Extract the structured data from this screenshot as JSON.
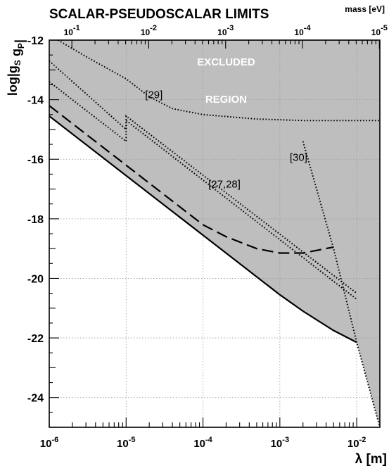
{
  "chart_data": {
    "type": "line",
    "title": "SCALAR-PSEUDOSCALAR LIMITS",
    "xlabel": "λ  [m]",
    "ylabel": "log|g_S g_P|",
    "top_axis_label": "mass [eV]",
    "x_scale": "log",
    "xlim": [
      1e-06,
      0.02
    ],
    "ylim": [
      -25,
      -12
    ],
    "grid": true,
    "x_tick_labels": [
      {
        "value": 1e-06,
        "base": "10",
        "exp": "-6"
      },
      {
        "value": 1e-05,
        "base": "10",
        "exp": "-5"
      },
      {
        "value": 0.0001,
        "base": "10",
        "exp": "-4"
      },
      {
        "value": 0.001,
        "base": "10",
        "exp": "-3"
      },
      {
        "value": 0.01,
        "base": "10",
        "exp": "-2"
      }
    ],
    "y_tick_labels": [
      "-12",
      "-14",
      "-16",
      "-18",
      "-20",
      "-22",
      "-24"
    ],
    "y_tick_values": [
      -12,
      -14,
      -16,
      -18,
      -20,
      -22,
      -24
    ],
    "top_tick_labels": [
      {
        "lambda": 1.97e-06,
        "base": "10",
        "exp": "-1"
      },
      {
        "lambda": 1.97e-05,
        "base": "10",
        "exp": "-2"
      },
      {
        "lambda": 0.000197,
        "base": "10",
        "exp": "-3"
      },
      {
        "lambda": 0.00197,
        "base": "10",
        "exp": "-4"
      },
      {
        "lambda": 0.0197,
        "base": "10",
        "exp": "-5"
      }
    ],
    "annotations": [
      {
        "text": "EXCLUDED",
        "x": 0.0002,
        "y": -12.85,
        "style": "region"
      },
      {
        "text": "REGION",
        "x": 0.0002,
        "y": -14.1,
        "style": "region"
      },
      {
        "text": "[29]",
        "x": 2.3e-05,
        "y": -13.95,
        "style": "ref"
      },
      {
        "text": "[27,28]",
        "x": 0.00019,
        "y": -16.95,
        "style": "ref"
      },
      {
        "text": "[30]",
        "x": 0.00175,
        "y": -16.05,
        "style": "ref"
      }
    ],
    "series": [
      {
        "style": "solid",
        "points": [
          [
            1e-06,
            -14.55
          ],
          [
            1e-05,
            -16.55
          ],
          [
            0.0001,
            -18.55
          ],
          [
            0.001,
            -20.55
          ],
          [
            0.002,
            -21.1
          ],
          [
            0.005,
            -21.75
          ],
          [
            0.01,
            -22.15
          ]
        ]
      },
      {
        "style": "dashed",
        "points": [
          [
            1e-06,
            -14.2
          ],
          [
            1e-05,
            -16.2
          ],
          [
            5e-05,
            -17.6
          ],
          [
            0.0001,
            -18.2
          ],
          [
            0.0002,
            -18.6
          ],
          [
            0.0005,
            -19.0
          ],
          [
            0.001,
            -19.15
          ],
          [
            0.002,
            -19.15
          ],
          [
            0.005,
            -18.95
          ]
        ]
      },
      {
        "style": "dotted",
        "points": [
          [
            1.3e-06,
            -12.0
          ],
          [
            3e-06,
            -12.55
          ],
          [
            1e-05,
            -13.3
          ],
          [
            2e-05,
            -13.9
          ],
          [
            4e-05,
            -14.3
          ],
          [
            0.0001,
            -14.5
          ],
          [
            0.0005,
            -14.65
          ],
          [
            0.002,
            -14.7
          ],
          [
            0.02,
            -14.7
          ]
        ]
      },
      {
        "style": "dotted",
        "points": [
          [
            1e-06,
            -12.7
          ],
          [
            1e-05,
            -15.0
          ],
          [
            1e-05,
            -14.55
          ],
          [
            0.01,
            -20.5
          ]
        ]
      },
      {
        "style": "dotted",
        "points": [
          [
            1e-06,
            -13.4
          ],
          [
            1e-05,
            -15.4
          ],
          [
            1e-05,
            -14.7
          ],
          [
            0.01,
            -20.7
          ]
        ]
      },
      {
        "style": "dotted",
        "points": [
          [
            0.002,
            -15.4
          ],
          [
            0.005,
            -19.0
          ],
          [
            0.01,
            -22.15
          ],
          [
            0.02,
            -25.0
          ]
        ]
      }
    ],
    "colors": {
      "excluded": "#bebebe",
      "line": "#000000",
      "grid": "#9a9a9a"
    }
  }
}
